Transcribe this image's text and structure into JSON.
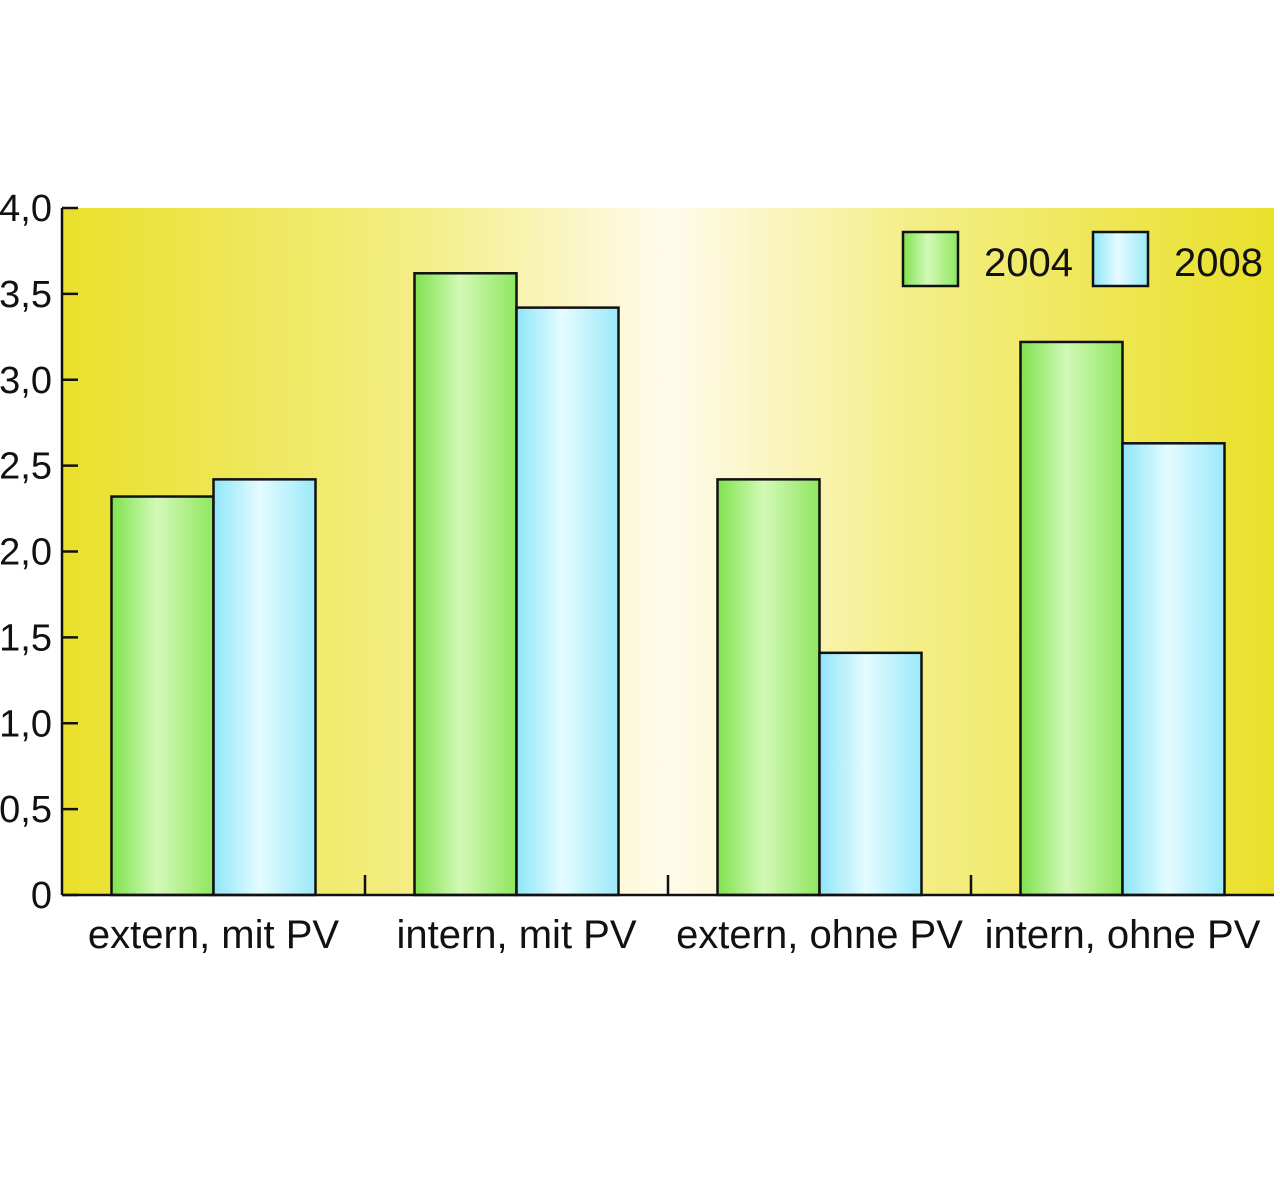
{
  "chart_data": {
    "type": "bar",
    "categories": [
      "extern, mit PV",
      "intern, mit PV",
      "extern, ohne PV",
      "intern, ohne PV"
    ],
    "series": [
      {
        "name": "2004",
        "values": [
          2.32,
          3.62,
          2.42,
          3.22
        ]
      },
      {
        "name": "2008",
        "values": [
          2.42,
          3.42,
          1.41,
          2.63
        ]
      }
    ],
    "ylim": [
      0,
      4
    ],
    "yticks": [
      0,
      0.5,
      1,
      1.5,
      2,
      2.5,
      3,
      3.5,
      4
    ],
    "ytick_labels": [
      "0",
      "0,5",
      "1,0",
      "1,5",
      "2,0",
      "2,5",
      "3,0",
      "3,5",
      "4,0"
    ],
    "legend_position": "top-right",
    "grid": false,
    "colors": {
      "series_2004": "#a6ef7a",
      "series_2008": "#b5f1fb",
      "background_edge": "#ebe22c",
      "background_center": "#fffbea",
      "outline": "#111111"
    }
  }
}
